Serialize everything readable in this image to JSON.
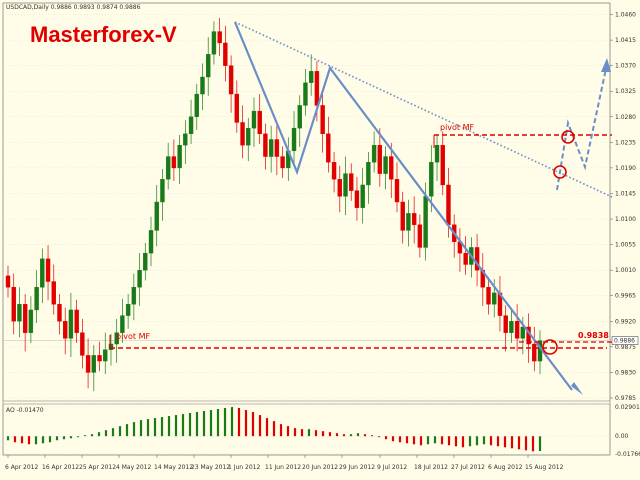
{
  "window": {
    "symbol_info": "USDCAD,Daily  0.9886 0.9893 0.9874 0.9886",
    "brand": "Masterforex-V"
  },
  "annotations": {
    "pivot_upper": "pivot MF",
    "pivot_lower": "pivot MF",
    "target_value": "0.9838"
  },
  "colors": {
    "bull": "#1a7a1a",
    "bear": "#e00000",
    "trend": "#6b8ec8",
    "pivot": "#e00000",
    "background": "#fffde7"
  },
  "chart_data": [
    {
      "type": "candlestick",
      "symbol": "USDCAD",
      "timeframe": "Daily",
      "ohlc_last": {
        "open": 0.9886,
        "high": 0.9893,
        "low": 0.9874,
        "close": 0.9886
      },
      "ylim": [
        0.9785,
        1.0475
      ],
      "y_ticks": [
        "1.0460",
        "1.0415",
        "1.0370",
        "1.0325",
        "1.0280",
        "1.0235",
        "1.0190",
        "1.0145",
        "1.0100",
        "1.0055",
        "1.0010",
        "0.9965",
        "0.9920",
        "0.9875",
        "0.9830",
        "0.9785"
      ],
      "y_tick_values": [
        1.046,
        1.0415,
        1.037,
        1.0325,
        1.028,
        1.0235,
        1.019,
        1.0145,
        1.01,
        1.0055,
        1.001,
        0.9965,
        0.992,
        0.9875,
        0.983,
        0.9785
      ],
      "current_price_label": "0.9886",
      "x_ticks": [
        "6 Apr 2012",
        "16 Apr 2012",
        "25 Apr 2012",
        "4 May 2012",
        "14 May 2012",
        "23 May 2012",
        "1 Jun 2012",
        "11 Jun 2012",
        "20 Jun 2012",
        "29 Jun 2012",
        "9 Jul 2012",
        "18 Jul 2012",
        "27 Jul 2012",
        "6 Aug 2012",
        "15 Aug 2012"
      ],
      "closes": [
        0.998,
        0.992,
        0.995,
        0.99,
        0.994,
        0.998,
        1.003,
        0.999,
        0.995,
        0.992,
        0.989,
        0.994,
        0.99,
        0.986,
        0.983,
        0.986,
        0.985,
        0.987,
        0.988,
        0.99,
        0.993,
        0.995,
        0.998,
        1.001,
        1.004,
        1.008,
        1.013,
        1.017,
        1.021,
        1.019,
        1.023,
        1.025,
        1.028,
        1.032,
        1.035,
        1.039,
        1.043,
        1.041,
        1.037,
        1.032,
        1.027,
        1.023,
        1.026,
        1.029,
        1.025,
        1.021,
        1.024,
        1.021,
        1.019,
        1.022,
        1.026,
        1.03,
        1.034,
        1.036,
        1.03,
        1.025,
        1.02,
        1.017,
        1.014,
        1.018,
        1.015,
        1.012,
        1.016,
        1.02,
        1.023,
        1.018,
        1.021,
        1.017,
        1.013,
        1.008,
        1.011,
        1.009,
        1.005,
        1.014,
        1.02,
        1.023,
        1.016,
        1.009,
        1.006,
        1.004,
        1.002,
        1.005,
        1.001,
        0.998,
        0.995,
        0.997,
        0.993,
        0.99,
        0.992,
        0.989,
        0.991,
        0.988,
        0.985,
        0.9886
      ],
      "pivot_levels": [
        1.0233,
        0.9838,
        0.9828
      ],
      "annotation_values": [
        "0.9838"
      ]
    },
    {
      "type": "bar",
      "indicator": "AO",
      "label": "AO -0.01470",
      "y_ticks": [
        "0.02901",
        "0.00",
        "-0.01766"
      ],
      "ylim": [
        -0.01766,
        0.02901
      ],
      "values": [
        -0.004,
        -0.006,
        -0.007,
        -0.008,
        -0.008,
        -0.007,
        -0.006,
        -0.004,
        -0.003,
        -0.002,
        -0.001,
        0.001,
        0.002,
        0.004,
        0.006,
        0.008,
        0.01,
        0.012,
        0.014,
        0.016,
        0.017,
        0.018,
        0.019,
        0.02,
        0.021,
        0.022,
        0.023,
        0.024,
        0.025,
        0.026,
        0.027,
        0.028,
        0.029,
        0.028,
        0.026,
        0.024,
        0.021,
        0.018,
        0.015,
        0.012,
        0.01,
        0.008,
        0.007,
        0.007,
        0.006,
        0.005,
        0.004,
        0.003,
        0.002,
        0.002,
        0.003,
        0.002,
        0.001,
        -0.001,
        -0.003,
        -0.005,
        -0.006,
        -0.007,
        -0.008,
        -0.009,
        -0.008,
        -0.007,
        -0.008,
        -0.009,
        -0.01,
        -0.011,
        -0.01,
        -0.009,
        -0.008,
        -0.009,
        -0.01,
        -0.011,
        -0.012,
        -0.013,
        -0.014,
        -0.015,
        -0.0147
      ]
    }
  ]
}
